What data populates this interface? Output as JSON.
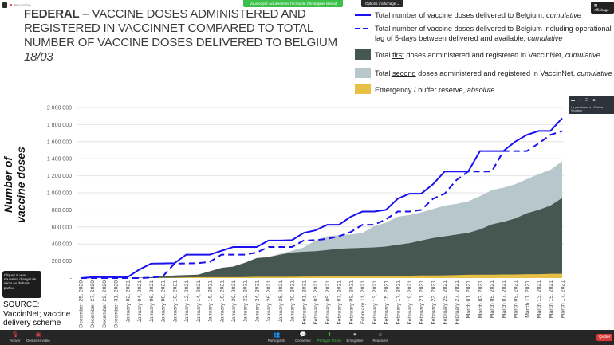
{
  "zoom": {
    "recording_label": "Recording",
    "viewing_banner": "Vous voyez actuellement l'écran de Christopher Barcat",
    "view_options": "Options d'affichage ⌄",
    "display_button": "Affichage",
    "speaker_text": "La parole est à : Sabine Stordeur",
    "tooltip": "Cliquez si vous souhaitez changer de micro ou de haut-parleur",
    "toolbar": {
      "mute": "Activer",
      "video": "Démarrer vidéo",
      "participants": "Participants",
      "chat": "Converser",
      "share": "Partager l'écran",
      "record": "Enregistrer",
      "reactions": "Réactions",
      "quit": "Quitter"
    }
  },
  "slide": {
    "title_bold": "FEDERAL",
    "title_rest": " – VACCINE DOSES ADMINISTERED AND REGISTERED IN VACCINNET COMPARED TO TOTAL NUMBER OF VACCINE DOSES DELIVERED TO BELGIUM",
    "date": "18/03",
    "source": "SOURCE: VaccinNet; vaccine delivery scheme",
    "legend": [
      {
        "text": "Total number of vaccine doses delivered to Belgium, ",
        "em": "cumulative"
      },
      {
        "text": "Total number of vaccine doses delivered to Belgium including operational lag of 5-days between delivered and available, ",
        "em": "cumulative"
      },
      {
        "pre": "Total ",
        "u": "first",
        "text": " doses administered and registered in VaccinNet, ",
        "em": "cumulative"
      },
      {
        "pre": "Total ",
        "u": "second",
        "text": " doses administered and registered in VaccinNet, ",
        "em": "cumulative"
      },
      {
        "text": "Emergency / buffer reserve, ",
        "em": "absolute"
      }
    ]
  },
  "chart_data": {
    "type": "area",
    "ylabel": "Number of vaccine doses",
    "ylim": [
      0,
      2000000
    ],
    "yticks": [
      "-",
      "200 000",
      "400 000",
      "600 000",
      "800 000",
      "1 000 000",
      "1 200 000",
      "1 400 000",
      "1 600 000",
      "1 800 000",
      "2 000 000"
    ],
    "grid": true,
    "legend_position": "top-right",
    "categories": [
      "December 25, 2020",
      "December 27, 2020",
      "December 29, 2020",
      "December 31, 2020",
      "January 02, 2021",
      "January 04, 2021",
      "January 06, 2021",
      "January 08, 2021",
      "January 10, 2021",
      "January 12, 2021",
      "January 14, 2021",
      "January 16, 2021",
      "January 18, 2021",
      "January 20, 2021",
      "January 22, 2021",
      "January 24, 2021",
      "January 26, 2021",
      "January 28, 2021",
      "January 30, 2021",
      "February 01, 2021",
      "February 03, 2021",
      "February 05, 2021",
      "February 07, 2021",
      "February 09, 2021",
      "February 11, 2021",
      "February 13, 2021",
      "February 15, 2021",
      "February 17, 2021",
      "February 19, 2021",
      "February 21, 2021",
      "February 23, 2021",
      "February 25, 2021",
      "February 27, 2021",
      "March 01, 2021",
      "March 03, 2021",
      "March 05, 2021",
      "March 07, 2021",
      "March 09, 2021",
      "March 11, 2021",
      "March 13, 2021",
      "March 15, 2021",
      "March 17, 2021"
    ],
    "series": [
      {
        "name": "Total delivered, cumulative",
        "style": "solid-line",
        "color": "#1a10f0",
        "values": [
          0,
          10000,
          10000,
          10000,
          10000,
          100000,
          170000,
          172000,
          175000,
          275000,
          275000,
          275000,
          320000,
          365000,
          365000,
          365000,
          440000,
          440000,
          445000,
          530000,
          560000,
          625000,
          625000,
          720000,
          780000,
          780000,
          800000,
          930000,
          990000,
          990000,
          1100000,
          1250000,
          1250000,
          1250000,
          1490000,
          1490000,
          1490000,
          1600000,
          1680000,
          1725000,
          1725000,
          1875000
        ]
      },
      {
        "name": "Total delivered incl. 5-day lag, cumulative",
        "style": "dashed-line",
        "color": "#1a10f0",
        "values": [
          0,
          0,
          0,
          0,
          0,
          0,
          5000,
          20000,
          170000,
          172000,
          175000,
          190000,
          275000,
          275000,
          275000,
          300000,
          365000,
          365000,
          365000,
          440000,
          445000,
          460000,
          490000,
          540000,
          625000,
          625000,
          690000,
          780000,
          780000,
          800000,
          930000,
          990000,
          1150000,
          1250000,
          1250000,
          1250000,
          1490000,
          1490000,
          1490000,
          1580000,
          1680000,
          1725000
        ]
      },
      {
        "name": "First doses, cumulative",
        "style": "area",
        "color": "#465650",
        "values": [
          0,
          0,
          0,
          0,
          0,
          5000,
          10000,
          20000,
          30000,
          35000,
          40000,
          80000,
          120000,
          135000,
          180000,
          235000,
          245000,
          275000,
          300000,
          310000,
          315000,
          330000,
          345000,
          350000,
          355000,
          360000,
          370000,
          390000,
          410000,
          440000,
          470000,
          490000,
          510000,
          530000,
          570000,
          630000,
          660000,
          700000,
          760000,
          800000,
          850000,
          940000
        ]
      },
      {
        "name": "Second doses, cumulative",
        "style": "stacked-area",
        "color": "#b8c7cb",
        "values": [
          0,
          0,
          0,
          0,
          0,
          0,
          0,
          0,
          0,
          0,
          0,
          0,
          0,
          0,
          0,
          0,
          5000,
          10000,
          20000,
          50000,
          125000,
          160000,
          160000,
          160000,
          175000,
          250000,
          280000,
          330000,
          330000,
          330000,
          340000,
          360000,
          360000,
          370000,
          390000,
          400000,
          400000,
          400000,
          400000,
          420000,
          420000,
          430000
        ]
      },
      {
        "name": "Emergency / buffer reserve, absolute",
        "style": "area",
        "color": "#e9c046",
        "values": [
          0,
          0,
          0,
          0,
          0,
          0,
          0,
          3000,
          5000,
          8000,
          10000,
          10000,
          10000,
          10000,
          12000,
          15000,
          15000,
          15000,
          15000,
          18000,
          18000,
          20000,
          20000,
          20000,
          20000,
          22000,
          22000,
          25000,
          28000,
          30000,
          30000,
          32000,
          35000,
          38000,
          40000,
          40000,
          42000,
          42000,
          45000,
          45000,
          50000,
          50000
        ]
      }
    ]
  }
}
